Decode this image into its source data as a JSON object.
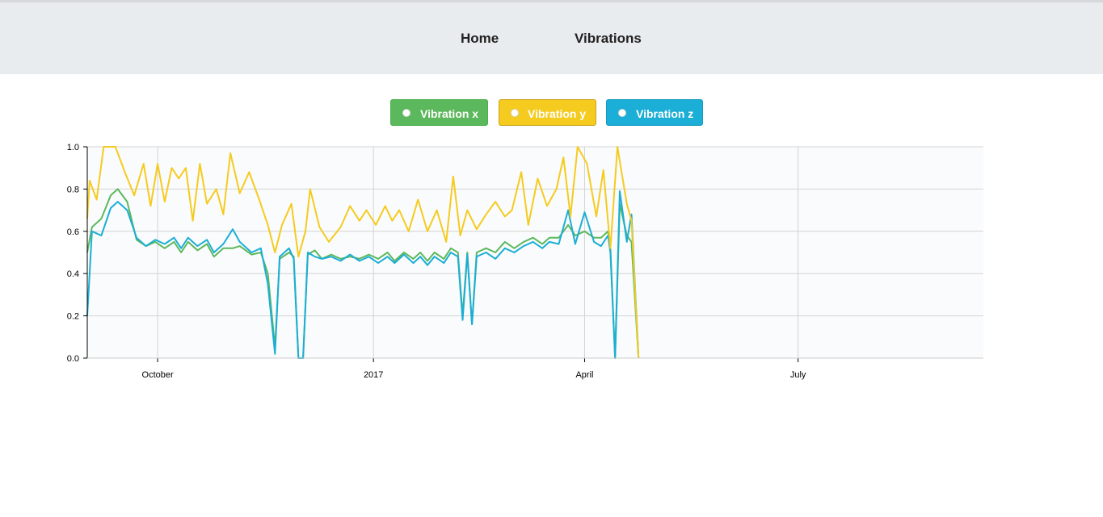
{
  "nav": {
    "home_label": "Home",
    "vibrations_label": "Vibrations"
  },
  "legend": [
    {
      "label": "Vibration x",
      "color": "#5cb85c"
    },
    {
      "label": "Vibration y",
      "color": "#f5cb1f"
    },
    {
      "label": "Vibration z",
      "color": "#1baed6"
    }
  ],
  "chart_data": {
    "type": "line",
    "x_axis": {
      "type": "time",
      "range": [
        "2016-09-01",
        "2017-09-18"
      ],
      "tick_labels": [
        {
          "label": "October",
          "date": "2016-10-01"
        },
        {
          "label": "2017",
          "date": "2017-01-01"
        },
        {
          "label": "April",
          "date": "2017-04-01"
        },
        {
          "label": "July",
          "date": "2017-07-01"
        }
      ]
    },
    "y_axis": {
      "range": [
        0,
        1
      ],
      "tick_labels": [
        "0.0",
        "0.2",
        "0.4",
        "0.6",
        "0.8",
        "1.0"
      ]
    },
    "grid": true,
    "plot_background": "#fafbfc",
    "series": [
      {
        "name": "Vibration x",
        "color": "#5cb85c",
        "points": [
          [
            "2016-09-01",
            0.5
          ],
          [
            "2016-09-03",
            0.62
          ],
          [
            "2016-09-07",
            0.66
          ],
          [
            "2016-09-11",
            0.77
          ],
          [
            "2016-09-14",
            0.8
          ],
          [
            "2016-09-18",
            0.74
          ],
          [
            "2016-09-22",
            0.56
          ],
          [
            "2016-09-26",
            0.53
          ],
          [
            "2016-09-30",
            0.55
          ],
          [
            "2016-10-04",
            0.52
          ],
          [
            "2016-10-08",
            0.55
          ],
          [
            "2016-10-11",
            0.5
          ],
          [
            "2016-10-14",
            0.55
          ],
          [
            "2016-10-18",
            0.51
          ],
          [
            "2016-10-22",
            0.54
          ],
          [
            "2016-10-25",
            0.48
          ],
          [
            "2016-10-29",
            0.52
          ],
          [
            "2016-11-02",
            0.52
          ],
          [
            "2016-11-05",
            0.53
          ],
          [
            "2016-11-10",
            0.49
          ],
          [
            "2016-11-14",
            0.5
          ],
          [
            "2016-11-17",
            0.4
          ],
          [
            "2016-11-20",
            0.05
          ],
          [
            "2016-11-22",
            0.47
          ],
          [
            "2016-11-26",
            0.5
          ],
          [
            "2016-11-28",
            0.48
          ],
          [
            "2016-11-30",
            0.0
          ],
          [
            "2016-12-02",
            0.0
          ],
          [
            "2016-12-04",
            0.49
          ],
          [
            "2016-12-07",
            0.51
          ],
          [
            "2016-12-10",
            0.47
          ],
          [
            "2016-12-14",
            0.49
          ],
          [
            "2016-12-18",
            0.47
          ],
          [
            "2016-12-22",
            0.48
          ],
          [
            "2016-12-26",
            0.47
          ],
          [
            "2016-12-30",
            0.49
          ],
          [
            "2017-01-03",
            0.47
          ],
          [
            "2017-01-07",
            0.5
          ],
          [
            "2017-01-10",
            0.46
          ],
          [
            "2017-01-14",
            0.5
          ],
          [
            "2017-01-18",
            0.47
          ],
          [
            "2017-01-21",
            0.5
          ],
          [
            "2017-01-24",
            0.46
          ],
          [
            "2017-01-27",
            0.5
          ],
          [
            "2017-01-31",
            0.47
          ],
          [
            "2017-02-03",
            0.52
          ],
          [
            "2017-02-06",
            0.5
          ],
          [
            "2017-02-08",
            0.2
          ],
          [
            "2017-02-10",
            0.5
          ],
          [
            "2017-02-12",
            0.16
          ],
          [
            "2017-02-14",
            0.5
          ],
          [
            "2017-02-18",
            0.52
          ],
          [
            "2017-02-22",
            0.5
          ],
          [
            "2017-02-26",
            0.55
          ],
          [
            "2017-03-02",
            0.52
          ],
          [
            "2017-03-06",
            0.55
          ],
          [
            "2017-03-10",
            0.57
          ],
          [
            "2017-03-14",
            0.54
          ],
          [
            "2017-03-17",
            0.57
          ],
          [
            "2017-03-21",
            0.57
          ],
          [
            "2017-03-25",
            0.63
          ],
          [
            "2017-03-28",
            0.58
          ],
          [
            "2017-04-01",
            0.6
          ],
          [
            "2017-04-05",
            0.57
          ],
          [
            "2017-04-08",
            0.57
          ],
          [
            "2017-04-11",
            0.6
          ],
          [
            "2017-04-12",
            0.52
          ],
          [
            "2017-04-14",
            0.0
          ],
          [
            "2017-04-16",
            0.73
          ],
          [
            "2017-04-19",
            0.58
          ],
          [
            "2017-04-21",
            0.55
          ],
          [
            "2017-04-24",
            0.0
          ]
        ]
      },
      {
        "name": "Vibration y",
        "color": "#f5cb1f",
        "points": [
          [
            "2016-09-01",
            0.66
          ],
          [
            "2016-09-02",
            0.84
          ],
          [
            "2016-09-05",
            0.75
          ],
          [
            "2016-09-08",
            1.0
          ],
          [
            "2016-09-13",
            1.0
          ],
          [
            "2016-09-17",
            0.88
          ],
          [
            "2016-09-21",
            0.77
          ],
          [
            "2016-09-25",
            0.92
          ],
          [
            "2016-09-28",
            0.72
          ],
          [
            "2016-10-01",
            0.92
          ],
          [
            "2016-10-04",
            0.74
          ],
          [
            "2016-10-07",
            0.9
          ],
          [
            "2016-10-10",
            0.85
          ],
          [
            "2016-10-13",
            0.9
          ],
          [
            "2016-10-16",
            0.65
          ],
          [
            "2016-10-19",
            0.92
          ],
          [
            "2016-10-22",
            0.73
          ],
          [
            "2016-10-26",
            0.8
          ],
          [
            "2016-10-29",
            0.68
          ],
          [
            "2016-11-01",
            0.97
          ],
          [
            "2016-11-05",
            0.78
          ],
          [
            "2016-11-09",
            0.88
          ],
          [
            "2016-11-13",
            0.76
          ],
          [
            "2016-11-17",
            0.63
          ],
          [
            "2016-11-20",
            0.5
          ],
          [
            "2016-11-23",
            0.63
          ],
          [
            "2016-11-27",
            0.73
          ],
          [
            "2016-11-30",
            0.48
          ],
          [
            "2016-12-03",
            0.6
          ],
          [
            "2016-12-05",
            0.8
          ],
          [
            "2016-12-09",
            0.62
          ],
          [
            "2016-12-13",
            0.55
          ],
          [
            "2016-12-18",
            0.62
          ],
          [
            "2016-12-22",
            0.72
          ],
          [
            "2016-12-26",
            0.65
          ],
          [
            "2016-12-29",
            0.7
          ],
          [
            "2017-01-02",
            0.63
          ],
          [
            "2017-01-06",
            0.72
          ],
          [
            "2017-01-09",
            0.65
          ],
          [
            "2017-01-12",
            0.7
          ],
          [
            "2017-01-16",
            0.6
          ],
          [
            "2017-01-20",
            0.75
          ],
          [
            "2017-01-24",
            0.6
          ],
          [
            "2017-01-28",
            0.7
          ],
          [
            "2017-02-01",
            0.55
          ],
          [
            "2017-02-04",
            0.86
          ],
          [
            "2017-02-07",
            0.58
          ],
          [
            "2017-02-10",
            0.7
          ],
          [
            "2017-02-14",
            0.61
          ],
          [
            "2017-02-18",
            0.68
          ],
          [
            "2017-02-22",
            0.74
          ],
          [
            "2017-02-26",
            0.67
          ],
          [
            "2017-03-01",
            0.7
          ],
          [
            "2017-03-05",
            0.88
          ],
          [
            "2017-03-08",
            0.63
          ],
          [
            "2017-03-12",
            0.85
          ],
          [
            "2017-03-16",
            0.72
          ],
          [
            "2017-03-20",
            0.8
          ],
          [
            "2017-03-23",
            0.95
          ],
          [
            "2017-03-26",
            0.67
          ],
          [
            "2017-03-29",
            1.0
          ],
          [
            "2017-04-02",
            0.92
          ],
          [
            "2017-04-06",
            0.67
          ],
          [
            "2017-04-09",
            0.89
          ],
          [
            "2017-04-12",
            0.52
          ],
          [
            "2017-04-15",
            1.0
          ],
          [
            "2017-04-19",
            0.73
          ],
          [
            "2017-04-21",
            0.65
          ],
          [
            "2017-04-24",
            0.0
          ]
        ]
      },
      {
        "name": "Vibration z",
        "color": "#1baed6",
        "points": [
          [
            "2016-09-01",
            0.2
          ],
          [
            "2016-09-03",
            0.6
          ],
          [
            "2016-09-07",
            0.58
          ],
          [
            "2016-09-11",
            0.71
          ],
          [
            "2016-09-14",
            0.74
          ],
          [
            "2016-09-18",
            0.7
          ],
          [
            "2016-09-22",
            0.57
          ],
          [
            "2016-09-26",
            0.53
          ],
          [
            "2016-09-30",
            0.56
          ],
          [
            "2016-10-04",
            0.54
          ],
          [
            "2016-10-08",
            0.57
          ],
          [
            "2016-10-11",
            0.52
          ],
          [
            "2016-10-14",
            0.57
          ],
          [
            "2016-10-18",
            0.53
          ],
          [
            "2016-10-22",
            0.56
          ],
          [
            "2016-10-25",
            0.5
          ],
          [
            "2016-10-29",
            0.54
          ],
          [
            "2016-11-02",
            0.61
          ],
          [
            "2016-11-05",
            0.55
          ],
          [
            "2016-11-10",
            0.5
          ],
          [
            "2016-11-14",
            0.52
          ],
          [
            "2016-11-17",
            0.35
          ],
          [
            "2016-11-20",
            0.02
          ],
          [
            "2016-11-22",
            0.48
          ],
          [
            "2016-11-26",
            0.52
          ],
          [
            "2016-11-28",
            0.47
          ],
          [
            "2016-11-30",
            0.0
          ],
          [
            "2016-12-02",
            0.0
          ],
          [
            "2016-12-04",
            0.5
          ],
          [
            "2016-12-07",
            0.48
          ],
          [
            "2016-12-10",
            0.47
          ],
          [
            "2016-12-14",
            0.48
          ],
          [
            "2016-12-18",
            0.46
          ],
          [
            "2016-12-22",
            0.49
          ],
          [
            "2016-12-26",
            0.46
          ],
          [
            "2016-12-30",
            0.48
          ],
          [
            "2017-01-03",
            0.45
          ],
          [
            "2017-01-07",
            0.48
          ],
          [
            "2017-01-10",
            0.45
          ],
          [
            "2017-01-14",
            0.49
          ],
          [
            "2017-01-18",
            0.45
          ],
          [
            "2017-01-21",
            0.48
          ],
          [
            "2017-01-24",
            0.44
          ],
          [
            "2017-01-27",
            0.48
          ],
          [
            "2017-01-31",
            0.45
          ],
          [
            "2017-02-03",
            0.5
          ],
          [
            "2017-02-06",
            0.48
          ],
          [
            "2017-02-08",
            0.18
          ],
          [
            "2017-02-10",
            0.49
          ],
          [
            "2017-02-12",
            0.16
          ],
          [
            "2017-02-14",
            0.48
          ],
          [
            "2017-02-18",
            0.5
          ],
          [
            "2017-02-22",
            0.47
          ],
          [
            "2017-02-26",
            0.52
          ],
          [
            "2017-03-02",
            0.5
          ],
          [
            "2017-03-06",
            0.53
          ],
          [
            "2017-03-10",
            0.55
          ],
          [
            "2017-03-14",
            0.52
          ],
          [
            "2017-03-17",
            0.55
          ],
          [
            "2017-03-21",
            0.54
          ],
          [
            "2017-03-25",
            0.7
          ],
          [
            "2017-03-28",
            0.54
          ],
          [
            "2017-04-01",
            0.69
          ],
          [
            "2017-04-05",
            0.55
          ],
          [
            "2017-04-08",
            0.53
          ],
          [
            "2017-04-11",
            0.58
          ],
          [
            "2017-04-12",
            0.5
          ],
          [
            "2017-04-14",
            0.0
          ],
          [
            "2017-04-16",
            0.79
          ],
          [
            "2017-04-19",
            0.55
          ],
          [
            "2017-04-21",
            0.68
          ],
          [
            "2017-04-24",
            0.0
          ]
        ]
      }
    ]
  }
}
